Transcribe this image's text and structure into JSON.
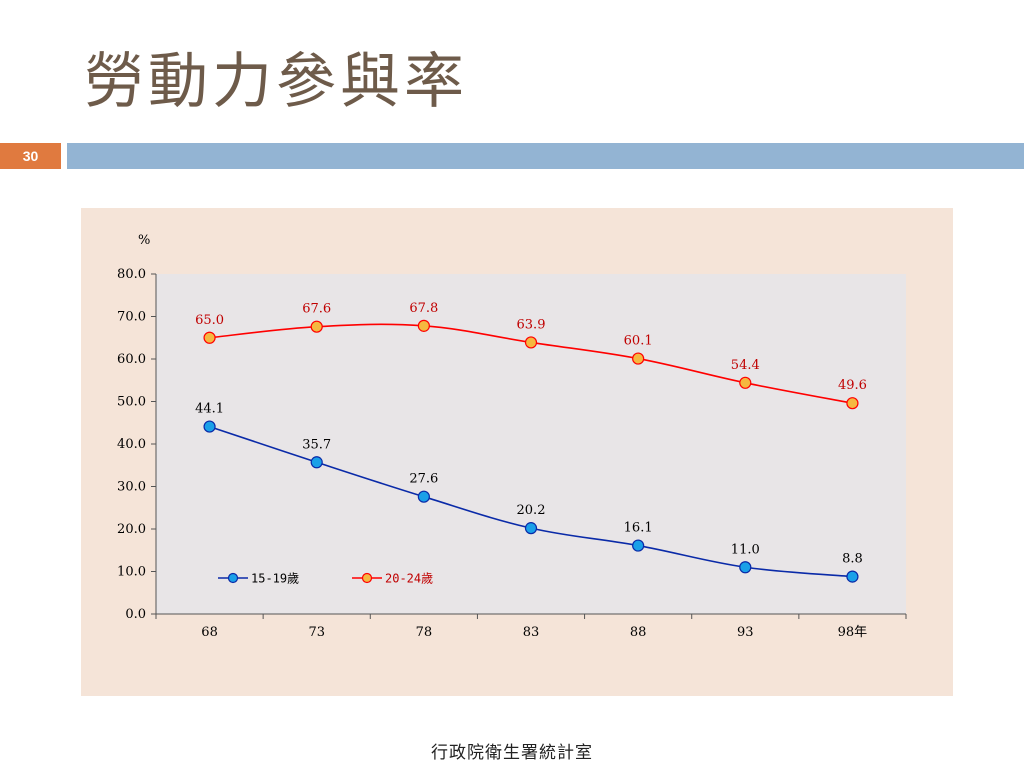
{
  "slide": {
    "title": "勞動力參與率",
    "page_number": "30",
    "footer": "行政院衛生署統計室"
  },
  "colors": {
    "accent_orange": "#e07a3f",
    "header_bar": "#93b4d3",
    "chart_background": "#f5e4d8",
    "plot_background": "#e8e5e7",
    "series_15_19_line": "#0a2aa8",
    "series_15_19_marker": "#1aa0e8",
    "series_20_24_line": "#ff0000",
    "series_20_24_marker": "#f5b840"
  },
  "chart_data": {
    "type": "line",
    "unit_label": "%",
    "categories": [
      "68",
      "73",
      "78",
      "83",
      "88",
      "93",
      "98年"
    ],
    "ylim": [
      0,
      80
    ],
    "yticks": [
      "0.0",
      "10.0",
      "20.0",
      "30.0",
      "40.0",
      "50.0",
      "60.0",
      "70.0",
      "80.0"
    ],
    "grid": false,
    "legend_position": "bottom-left inside plot",
    "series": [
      {
        "name": "15-19歲",
        "values": [
          44.1,
          35.7,
          27.6,
          20.2,
          16.1,
          11.0,
          8.8
        ],
        "labels": [
          "44.1",
          "35.7",
          "27.6",
          "20.2",
          "16.1",
          "11.0",
          "8.8"
        ]
      },
      {
        "name": "20-24歲",
        "values": [
          65.0,
          67.6,
          67.8,
          63.9,
          60.1,
          54.4,
          49.6
        ],
        "labels": [
          "65.0",
          "67.6",
          "67.8",
          "63.9",
          "60.1",
          "54.4",
          "49.6"
        ]
      }
    ]
  }
}
